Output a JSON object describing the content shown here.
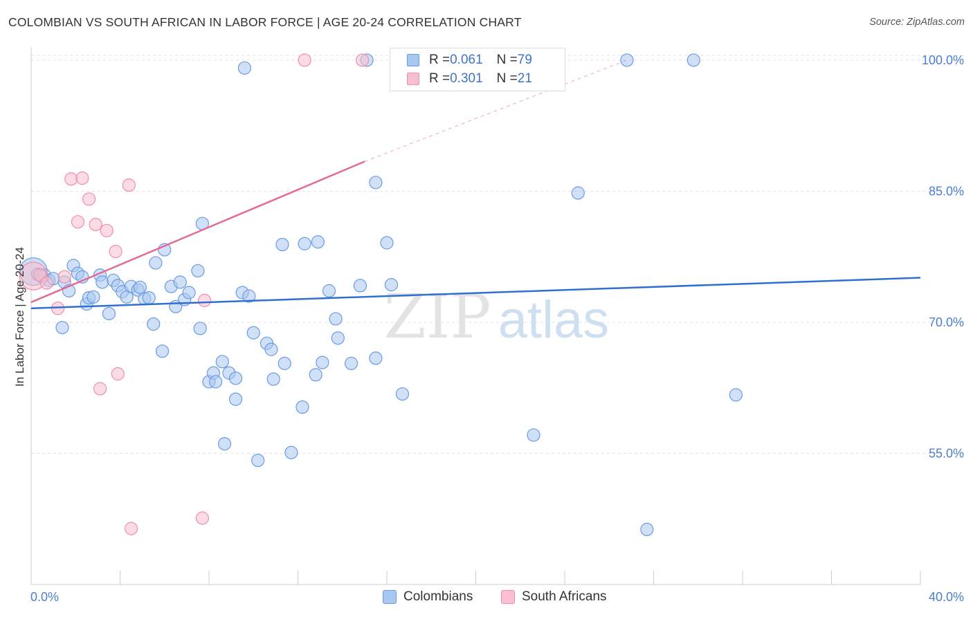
{
  "title": "COLOMBIAN VS SOUTH AFRICAN IN LABOR FORCE | AGE 20-24 CORRELATION CHART",
  "source": "Source: ZipAtlas.com",
  "watermark": {
    "zip": "ZIP",
    "atlas": "atlas"
  },
  "colors": {
    "colombians_fill": "#a9c8f0",
    "colombians_stroke": "#6a9be0",
    "colombians_line": "#2f6fcf",
    "south_africans_fill": "#f8bfd0",
    "south_africans_stroke": "#ee8faa",
    "south_africans_line": "#e46a94",
    "tick_label": "#4a7fd0",
    "grid": "#e2e2e2"
  },
  "legend": {
    "rows": [
      {
        "r_label": "R = ",
        "r_value": "0.061",
        "n_label": "N = ",
        "n_value": "79"
      },
      {
        "r_label": "R = ",
        "r_value": "0.301",
        "n_label": "N = ",
        "n_value": "21"
      }
    ]
  },
  "bottom_legend": [
    "Colombians",
    "South Africans"
  ],
  "chart_data": {
    "type": "scatter",
    "title": "COLOMBIAN VS SOUTH AFRICAN IN LABOR FORCE | AGE 20-24 CORRELATION CHART",
    "xlabel": "",
    "ylabel": "In Labor Force | Age 20-24",
    "xlim": [
      0,
      40
    ],
    "ylim": [
      40,
      101.5
    ],
    "x_tick_labels": [
      "0.0%",
      "40.0%"
    ],
    "y_ticks": [
      55,
      70,
      85,
      100
    ],
    "y_tick_labels": [
      "55.0%",
      "70.0%",
      "85.0%",
      "100.0%"
    ],
    "grid": true,
    "legend_position": "top-center",
    "series": [
      {
        "name": "Colombians",
        "r": 0.061,
        "n": 79,
        "trend": {
          "x": [
            0,
            40
          ],
          "y": [
            71.6,
            75.1
          ]
        },
        "points": [
          {
            "x": 0.1,
            "y": 75.8,
            "big": true
          },
          {
            "x": 0.3,
            "y": 75.5
          },
          {
            "x": 0.5,
            "y": 75.2
          },
          {
            "x": 0.6,
            "y": 75.4
          },
          {
            "x": 0.8,
            "y": 74.8
          },
          {
            "x": 1.0,
            "y": 75.0
          },
          {
            "x": 1.4,
            "y": 69.4
          },
          {
            "x": 1.5,
            "y": 74.6
          },
          {
            "x": 1.7,
            "y": 73.6
          },
          {
            "x": 1.9,
            "y": 76.5
          },
          {
            "x": 2.1,
            "y": 75.6
          },
          {
            "x": 2.3,
            "y": 75.2
          },
          {
            "x": 2.5,
            "y": 72.1
          },
          {
            "x": 2.6,
            "y": 72.8
          },
          {
            "x": 2.8,
            "y": 72.9
          },
          {
            "x": 3.1,
            "y": 75.4
          },
          {
            "x": 3.2,
            "y": 74.6
          },
          {
            "x": 3.5,
            "y": 71.0
          },
          {
            "x": 3.7,
            "y": 74.8
          },
          {
            "x": 3.9,
            "y": 74.2
          },
          {
            "x": 4.1,
            "y": 73.5
          },
          {
            "x": 4.3,
            "y": 72.9
          },
          {
            "x": 4.5,
            "y": 74.1
          },
          {
            "x": 4.8,
            "y": 73.7
          },
          {
            "x": 4.9,
            "y": 74.0
          },
          {
            "x": 5.1,
            "y": 72.7
          },
          {
            "x": 5.3,
            "y": 72.8
          },
          {
            "x": 5.5,
            "y": 69.8
          },
          {
            "x": 5.6,
            "y": 76.8
          },
          {
            "x": 5.9,
            "y": 66.7
          },
          {
            "x": 6.0,
            "y": 78.3
          },
          {
            "x": 6.3,
            "y": 74.1
          },
          {
            "x": 6.5,
            "y": 71.8
          },
          {
            "x": 6.7,
            "y": 74.6
          },
          {
            "x": 6.9,
            "y": 72.6
          },
          {
            "x": 7.1,
            "y": 73.4
          },
          {
            "x": 7.5,
            "y": 75.9
          },
          {
            "x": 7.6,
            "y": 69.3
          },
          {
            "x": 7.7,
            "y": 81.3
          },
          {
            "x": 8.0,
            "y": 63.2
          },
          {
            "x": 8.2,
            "y": 64.2
          },
          {
            "x": 8.3,
            "y": 63.2
          },
          {
            "x": 8.6,
            "y": 65.5
          },
          {
            "x": 8.7,
            "y": 56.1
          },
          {
            "x": 8.9,
            "y": 64.2
          },
          {
            "x": 9.2,
            "y": 61.2
          },
          {
            "x": 9.2,
            "y": 63.6
          },
          {
            "x": 9.5,
            "y": 73.4
          },
          {
            "x": 9.6,
            "y": 99.1
          },
          {
            "x": 9.8,
            "y": 73.0
          },
          {
            "x": 10.0,
            "y": 68.8
          },
          {
            "x": 10.2,
            "y": 54.2
          },
          {
            "x": 10.6,
            "y": 67.6
          },
          {
            "x": 10.8,
            "y": 66.9
          },
          {
            "x": 10.9,
            "y": 63.5
          },
          {
            "x": 11.3,
            "y": 78.9
          },
          {
            "x": 11.4,
            "y": 65.3
          },
          {
            "x": 11.7,
            "y": 55.1
          },
          {
            "x": 12.2,
            "y": 60.3
          },
          {
            "x": 12.3,
            "y": 79.0
          },
          {
            "x": 12.8,
            "y": 64.0
          },
          {
            "x": 12.9,
            "y": 79.2
          },
          {
            "x": 13.1,
            "y": 65.4
          },
          {
            "x": 13.4,
            "y": 73.6
          },
          {
            "x": 13.7,
            "y": 70.4
          },
          {
            "x": 13.8,
            "y": 68.2
          },
          {
            "x": 14.4,
            "y": 65.3
          },
          {
            "x": 14.8,
            "y": 74.2
          },
          {
            "x": 15.1,
            "y": 100.0
          },
          {
            "x": 15.5,
            "y": 65.9
          },
          {
            "x": 15.5,
            "y": 86.0
          },
          {
            "x": 16.0,
            "y": 79.1
          },
          {
            "x": 16.2,
            "y": 74.3
          },
          {
            "x": 16.7,
            "y": 61.8
          },
          {
            "x": 22.6,
            "y": 57.1
          },
          {
            "x": 24.6,
            "y": 84.8
          },
          {
            "x": 26.8,
            "y": 100.0
          },
          {
            "x": 27.7,
            "y": 46.3
          },
          {
            "x": 29.8,
            "y": 100.0
          },
          {
            "x": 31.7,
            "y": 61.7
          }
        ]
      },
      {
        "name": "South Africans",
        "r": 0.301,
        "n": 21,
        "trend": {
          "x": [
            0,
            15.0
          ],
          "y": [
            72.3,
            88.4
          ]
        },
        "trend_dashed": {
          "x": [
            15.0,
            26.8
          ],
          "y": [
            88.4,
            100.0
          ]
        },
        "points": [
          {
            "x": 0.1,
            "y": 75.3,
            "big": true
          },
          {
            "x": 0.4,
            "y": 75.4
          },
          {
            "x": 0.7,
            "y": 74.5
          },
          {
            "x": 1.2,
            "y": 71.6
          },
          {
            "x": 1.5,
            "y": 75.2
          },
          {
            "x": 1.8,
            "y": 86.4
          },
          {
            "x": 2.1,
            "y": 81.5
          },
          {
            "x": 2.3,
            "y": 86.5
          },
          {
            "x": 2.6,
            "y": 84.1
          },
          {
            "x": 2.9,
            "y": 81.2
          },
          {
            "x": 3.1,
            "y": 62.4
          },
          {
            "x": 3.4,
            "y": 80.5
          },
          {
            "x": 3.8,
            "y": 78.1
          },
          {
            "x": 3.9,
            "y": 64.1
          },
          {
            "x": 4.4,
            "y": 85.7
          },
          {
            "x": 4.5,
            "y": 46.4
          },
          {
            "x": 7.7,
            "y": 47.6
          },
          {
            "x": 7.8,
            "y": 72.5
          },
          {
            "x": 12.3,
            "y": 100.0
          },
          {
            "x": 14.9,
            "y": 100.0
          }
        ]
      }
    ]
  }
}
